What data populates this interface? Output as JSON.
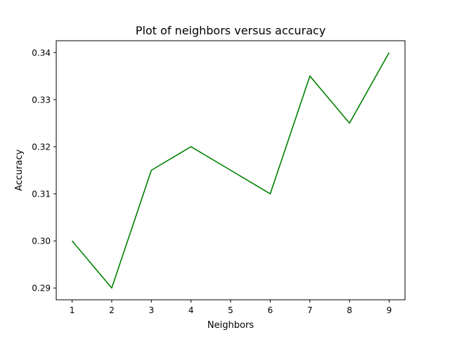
{
  "chart_data": {
    "type": "line",
    "title": "Plot of neighbors versus accuracy",
    "xlabel": "Neighbors",
    "ylabel": "Accuracy",
    "x": [
      1,
      2,
      3,
      4,
      5,
      6,
      7,
      8,
      9
    ],
    "series": [
      {
        "values": [
          0.3,
          0.29,
          0.315,
          0.32,
          0.315,
          0.31,
          0.335,
          0.325,
          0.34
        ],
        "color": "#008000"
      }
    ],
    "xlim": [
      0.6,
      9.4
    ],
    "ylim": [
      0.2875,
      0.3425
    ],
    "xticks": [
      1,
      2,
      3,
      4,
      5,
      6,
      7,
      8,
      9
    ],
    "xtick_labels": [
      "1",
      "2",
      "3",
      "4",
      "5",
      "6",
      "7",
      "8",
      "9"
    ],
    "yticks": [
      0.29,
      0.3,
      0.31,
      0.32,
      0.33,
      0.34
    ],
    "ytick_labels": [
      "0.29",
      "0.30",
      "0.31",
      "0.32",
      "0.33",
      "0.34"
    ],
    "grid": false,
    "legend": "none"
  }
}
